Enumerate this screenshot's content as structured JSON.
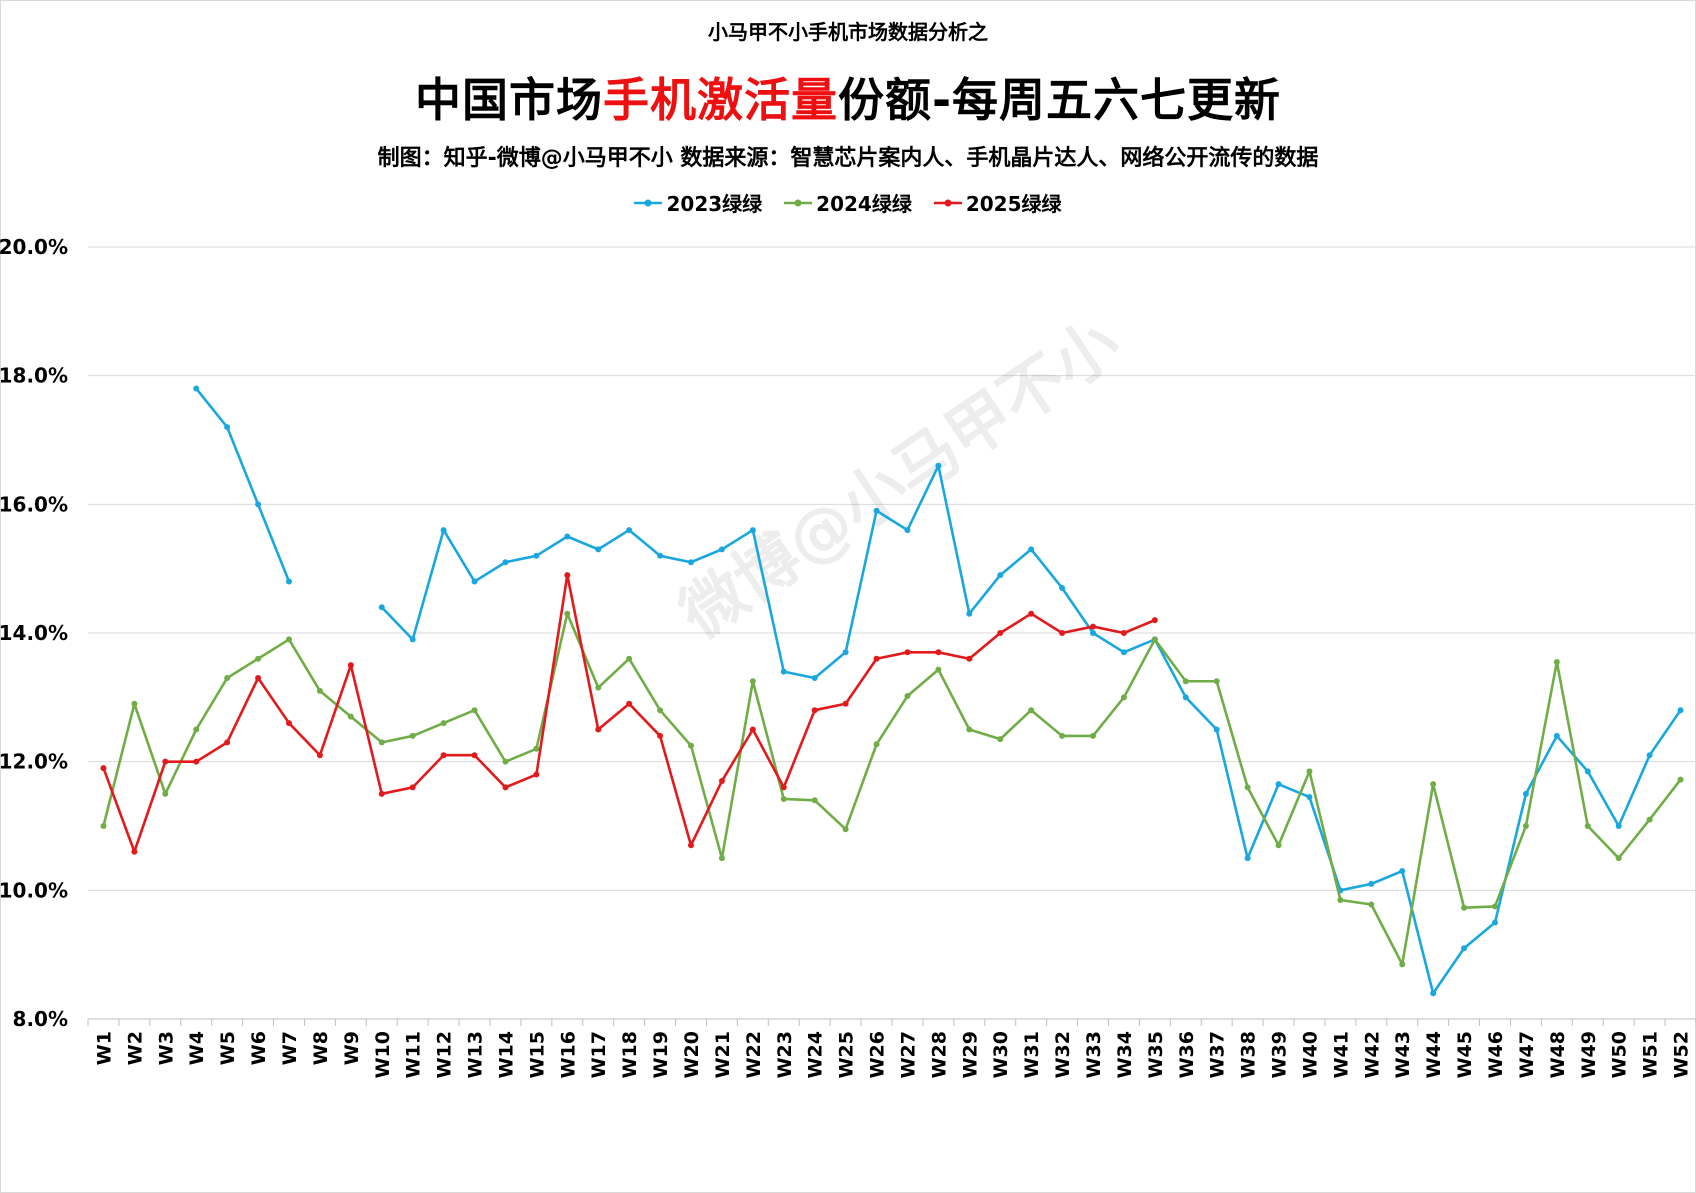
{
  "header": {
    "subtitle": "小马甲不小手机市场数据分析之",
    "title_prefix": "中国市场",
    "title_highlight": "手机激活量",
    "title_suffix": "份额-每周五六七更新",
    "credit": "制图：知乎-微博@小马甲不小  数据来源：智慧芯片案内人、手机晶片达人、网络公开流传的数据"
  },
  "watermark": "微博@小马甲不小",
  "chart_data": {
    "type": "line",
    "categories": [
      "W1",
      "W2",
      "W3",
      "W4",
      "W5",
      "W6",
      "W7",
      "W8",
      "W9",
      "W10",
      "W11",
      "W12",
      "W13",
      "W14",
      "W15",
      "W16",
      "W17",
      "W18",
      "W19",
      "W20",
      "W21",
      "W22",
      "W23",
      "W24",
      "W25",
      "W26",
      "W27",
      "W28",
      "W29",
      "W30",
      "W31",
      "W32",
      "W33",
      "W34",
      "W35",
      "W36",
      "W37",
      "W38",
      "W39",
      "W40",
      "W41",
      "W42",
      "W43",
      "W44",
      "W45",
      "W46",
      "W47",
      "W48",
      "W49",
      "W50",
      "W51",
      "W52"
    ],
    "y_ticks": [
      "8.0%",
      "10.0%",
      "12.0%",
      "14.0%",
      "16.0%",
      "18.0%",
      "20.0%"
    ],
    "ylim": [
      8,
      20
    ],
    "grid": true,
    "legend_position": "top-center",
    "series": [
      {
        "name": "2023绿绿",
        "color": "#1aa7e0",
        "values": [
          null,
          null,
          null,
          17.8,
          17.2,
          16.0,
          14.8,
          null,
          null,
          14.4,
          13.9,
          15.6,
          14.8,
          15.1,
          15.2,
          15.5,
          15.3,
          15.6,
          15.2,
          15.1,
          15.3,
          15.6,
          13.4,
          13.3,
          13.7,
          15.9,
          15.6,
          16.6,
          14.3,
          14.9,
          15.3,
          14.7,
          14.0,
          13.7,
          13.9,
          13.0,
          12.5,
          10.5,
          11.65,
          11.45,
          10.0,
          10.1,
          10.3,
          8.4,
          9.1,
          9.5,
          11.5,
          12.4,
          11.85,
          11.0,
          12.1,
          12.8
        ]
      },
      {
        "name": "2024绿绿",
        "color": "#70ad47",
        "values": [
          11.0,
          12.9,
          11.5,
          12.5,
          13.3,
          13.6,
          13.9,
          13.1,
          12.7,
          12.3,
          12.4,
          12.6,
          12.8,
          12.0,
          12.2,
          14.3,
          13.15,
          13.6,
          12.8,
          12.25,
          10.5,
          13.25,
          11.42,
          11.4,
          10.95,
          12.27,
          13.02,
          13.43,
          12.5,
          12.35,
          12.8,
          12.4,
          12.4,
          13.0,
          13.9,
          13.25,
          13.25,
          11.6,
          10.7,
          11.85,
          9.85,
          9.78,
          8.85,
          11.65,
          9.73,
          9.75,
          11.0,
          13.55,
          11.0,
          10.5,
          11.1,
          11.72
        ]
      },
      {
        "name": "2025绿绿",
        "color": "#e31a1c",
        "values": [
          11.9,
          10.6,
          12.0,
          12.0,
          12.3,
          13.3,
          12.6,
          12.1,
          13.5,
          11.5,
          11.6,
          12.1,
          12.1,
          11.6,
          11.8,
          14.9,
          12.5,
          12.9,
          12.4,
          10.7,
          11.7,
          12.5,
          11.6,
          12.8,
          12.9,
          13.6,
          13.7,
          13.7,
          13.6,
          14.0,
          14.3,
          14.0,
          14.1,
          14.0,
          14.2,
          null,
          null,
          null,
          null,
          null,
          null,
          null,
          null,
          null,
          null,
          null,
          null,
          null,
          null,
          null,
          null,
          null
        ]
      }
    ]
  }
}
